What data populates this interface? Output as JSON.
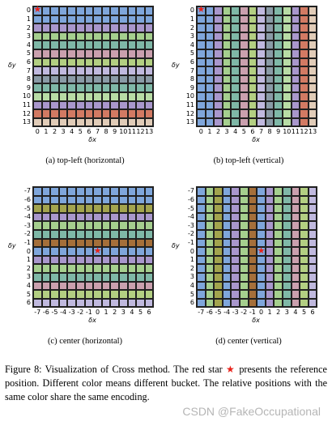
{
  "colors": {
    "blue": "#7fa6db",
    "purple": "#a997cc",
    "green": "#a5cf8e",
    "teal": "#7fb8a7",
    "pink": "#caa0ae",
    "lime": "#b3cf82",
    "slate": "#8a9ba6",
    "lavender": "#c0b9de",
    "lightgreen": "#b8dca5",
    "salmon": "#d27a63",
    "beige": "#e1ccb8",
    "olive": "#a3a44e",
    "brown": "#a56f3a",
    "star": "#e8221a"
  },
  "panels": [
    {
      "id": "a",
      "caption": "(a) top-left (horizontal)",
      "orientation": "horizontal",
      "xlabel": "δx",
      "ylabel": "δy",
      "xticks": [
        "0",
        "1",
        "2",
        "3",
        "4",
        "5",
        "6",
        "7",
        "8",
        "9",
        "10",
        "11",
        "12",
        "13"
      ],
      "yticks": [
        "0",
        "1",
        "2",
        "3",
        "4",
        "5",
        "6",
        "7",
        "8",
        "9",
        "10",
        "11",
        "12",
        "13"
      ],
      "band_colors": [
        "blue",
        "blue",
        "purple",
        "green",
        "teal",
        "pink",
        "lime",
        "lavender",
        "slate",
        "teal",
        "lightgreen",
        "purple",
        "salmon",
        "beige"
      ],
      "star": {
        "col": 0,
        "row": 0
      }
    },
    {
      "id": "b",
      "caption": "(b) top-left (vertical)",
      "orientation": "vertical",
      "xlabel": "δx",
      "ylabel": "δy",
      "xticks": [
        "0",
        "1",
        "2",
        "3",
        "4",
        "5",
        "6",
        "7",
        "8",
        "9",
        "10",
        "11",
        "12",
        "13"
      ],
      "yticks": [
        "0",
        "1",
        "2",
        "3",
        "4",
        "5",
        "6",
        "7",
        "8",
        "9",
        "10",
        "11",
        "12",
        "13"
      ],
      "band_colors": [
        "blue",
        "blue",
        "purple",
        "green",
        "teal",
        "pink",
        "lime",
        "lavender",
        "slate",
        "teal",
        "lightgreen",
        "purple",
        "salmon",
        "beige"
      ],
      "star": {
        "col": 0,
        "row": 0
      }
    },
    {
      "id": "c",
      "caption": "(c) center (horizontal)",
      "orientation": "horizontal",
      "xlabel": "δx",
      "ylabel": "δy",
      "xticks": [
        "-7",
        "-6",
        "-5",
        "-4",
        "-3",
        "-2",
        "-1",
        "0",
        "1",
        "2",
        "3",
        "4",
        "5",
        "6"
      ],
      "yticks": [
        "-7",
        "-6",
        "-5",
        "-4",
        "-3",
        "-2",
        "-1",
        "0",
        "1",
        "2",
        "3",
        "4",
        "5",
        "6"
      ],
      "band_colors": [
        "blue",
        "blue",
        "olive",
        "purple",
        "green",
        "teal",
        "brown",
        "blue",
        "purple",
        "green",
        "teal",
        "pink",
        "lime",
        "lavender"
      ],
      "star": {
        "col": 7,
        "row": 7
      }
    },
    {
      "id": "d",
      "caption": "(d) center (vertical)",
      "orientation": "vertical",
      "xlabel": "δx",
      "ylabel": "δy",
      "xticks": [
        "-7",
        "-6",
        "-5",
        "-4",
        "-3",
        "-2",
        "-1",
        "0",
        "1",
        "2",
        "3",
        "4",
        "5",
        "6"
      ],
      "yticks": [
        "-7",
        "-6",
        "-5",
        "-4",
        "-3",
        "-2",
        "-1",
        "0",
        "1",
        "2",
        "3",
        "4",
        "5",
        "6"
      ],
      "band_colors": [
        "blue",
        "green",
        "olive",
        "blue",
        "purple",
        "green",
        "brown",
        "blue",
        "purple",
        "green",
        "teal",
        "pink",
        "lime",
        "lavender"
      ],
      "star": {
        "col": 7,
        "row": 7
      }
    }
  ],
  "caption": {
    "label": "Figure 8:",
    "text_before_star": " Visualization of Cross method. The red star ",
    "star_glyph": "★",
    "text_after_star": " presents the reference position. Different color means different bucket. The relative positions with the same color share the same encoding."
  },
  "watermark": "CSDN @FakeOccupational"
}
